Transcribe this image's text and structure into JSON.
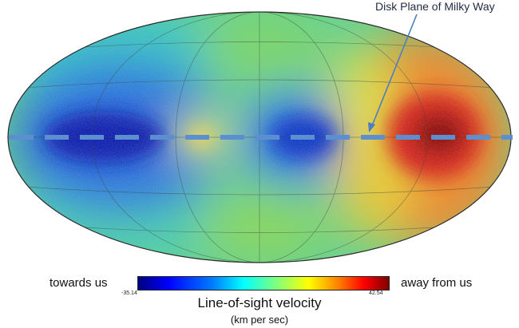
{
  "annotation": "Disk Plane of Milky Way",
  "colorbar": {
    "left_label": "towards us",
    "right_label": "away from us",
    "min": "-35.14",
    "max": "42.54"
  },
  "title": "Line-of-sight velocity",
  "subtitle": "(km per sec)",
  "colors": {
    "disk_line": "#5b8fd0",
    "annotation_arrow": "#4a7fc0"
  }
}
